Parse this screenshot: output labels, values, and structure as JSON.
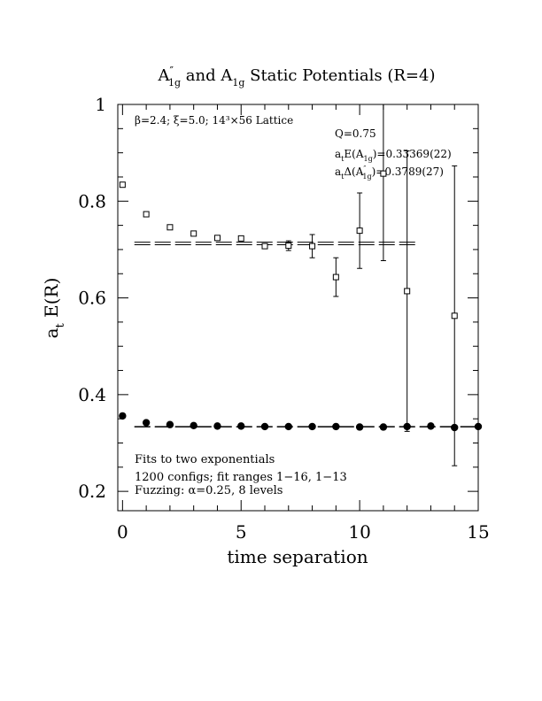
{
  "chart_data": {
    "type": "scatter",
    "title": {
      "part1": "A",
      "part1_sup": "″",
      "part1_sub": "1g",
      "part2": " and A",
      "part2_sub": "1g",
      "part3": " Static Potentials (R=4)"
    },
    "xlabel": "time separation",
    "ylabel": {
      "main": "a",
      "sub": "t",
      "rest": " E(R)"
    },
    "xlim": [
      -0.2,
      15
    ],
    "ylim": [
      0.16,
      1.0
    ],
    "xticks": [
      0,
      5,
      10,
      15
    ],
    "xtick_labels": [
      "0",
      "5",
      "10",
      "15"
    ],
    "yticks": [
      0.2,
      0.4,
      0.6,
      0.8,
      1.0
    ],
    "ytick_labels": [
      "0.2",
      "0.4",
      "0.6",
      "0.8",
      "1"
    ],
    "annotations": {
      "lattice": "β=2.4; ξ=5.0; 14³×56 Lattice",
      "q": "Q=0.75",
      "energy": {
        "prefix": "a",
        "prefix_sub": "t",
        "mid": "E(A",
        "mid_sub": "1g",
        "value": ")=0.33369(22)"
      },
      "delta": {
        "prefix": "a",
        "prefix_sub": "t",
        "mid": "Δ(A",
        "mid_sup": "″",
        "mid_sub": "1g",
        "value": ")=0.3789(27)"
      },
      "fits": "Fits to two exponentials",
      "configs": "1200 configs; fit ranges 1−16, 1−13",
      "fuzzing": "Fuzzing: α=0.25, 8 levels"
    },
    "series": [
      {
        "name": "A″ 1g",
        "marker": "open-square",
        "points": [
          {
            "x": 0,
            "y": 0.834,
            "err": 0.0
          },
          {
            "x": 1,
            "y": 0.773,
            "err": 0.0
          },
          {
            "x": 2,
            "y": 0.746,
            "err": 0.0
          },
          {
            "x": 3,
            "y": 0.733,
            "err": 0.0
          },
          {
            "x": 4,
            "y": 0.724,
            "err": 0.0
          },
          {
            "x": 5,
            "y": 0.723,
            "err": 0.0
          },
          {
            "x": 6,
            "y": 0.707,
            "err": 0.004
          },
          {
            "x": 7,
            "y": 0.708,
            "err": 0.01
          },
          {
            "x": 8,
            "y": 0.707,
            "err": 0.024
          },
          {
            "x": 9,
            "y": 0.643,
            "err": 0.04
          },
          {
            "x": 10,
            "y": 0.739,
            "err": 0.078
          },
          {
            "x": 11,
            "y": 0.857,
            "err": 0.18
          },
          {
            "x": 12,
            "y": 0.614,
            "err": 0.29
          },
          {
            "x": 14,
            "y": 0.563,
            "err": 0.31
          }
        ],
        "fit": {
          "y": 0.7126,
          "band": 0.0027,
          "x_range": [
            0.5,
            12.5
          ]
        }
      },
      {
        "name": "A 1g",
        "marker": "filled-circle",
        "points": [
          {
            "x": 0,
            "y": 0.356
          },
          {
            "x": 1,
            "y": 0.342
          },
          {
            "x": 2,
            "y": 0.338
          },
          {
            "x": 3,
            "y": 0.336
          },
          {
            "x": 4,
            "y": 0.335
          },
          {
            "x": 5,
            "y": 0.335
          },
          {
            "x": 6,
            "y": 0.334
          },
          {
            "x": 7,
            "y": 0.334
          },
          {
            "x": 8,
            "y": 0.334
          },
          {
            "x": 9,
            "y": 0.334
          },
          {
            "x": 10,
            "y": 0.333
          },
          {
            "x": 11,
            "y": 0.333
          },
          {
            "x": 12,
            "y": 0.334
          },
          {
            "x": 13,
            "y": 0.335
          },
          {
            "x": 14,
            "y": 0.332
          },
          {
            "x": 15,
            "y": 0.334
          }
        ],
        "fit": {
          "y": 0.33369,
          "band": 0.0005,
          "x_range": [
            0.5,
            15
          ]
        }
      }
    ]
  }
}
